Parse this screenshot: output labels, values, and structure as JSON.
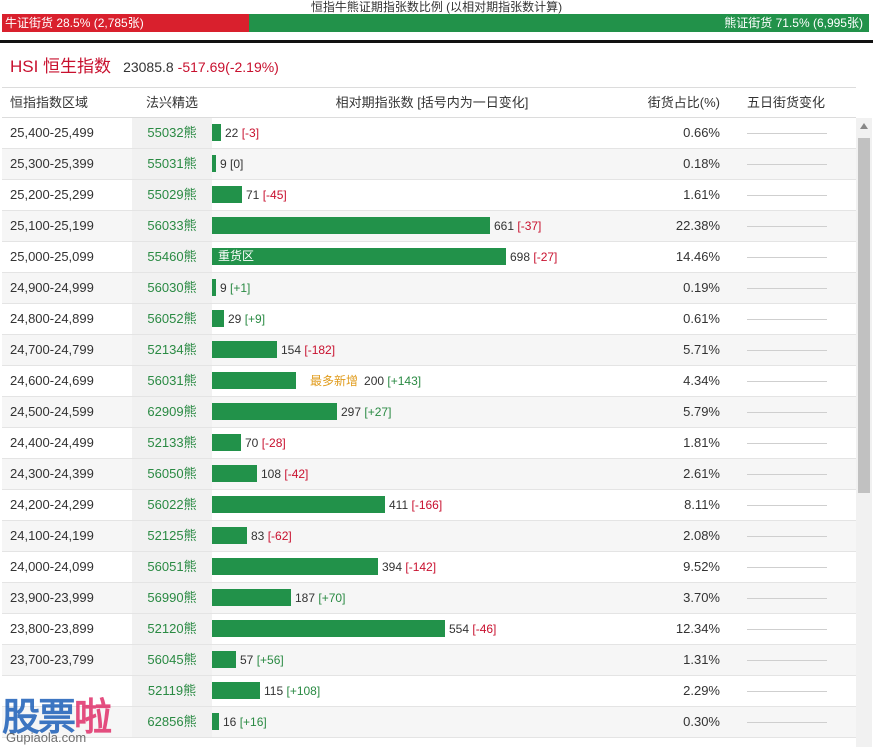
{
  "caption": "恒指牛熊证期指张数比例 (以相对期指张数计算)",
  "ratio": {
    "bull_label": "牛证街货 28.5% (2,785张)",
    "bear_label": "熊证街货 71.5% (6,995张)",
    "bull_fraction": 0.285,
    "bear_fraction": 0.715
  },
  "index": {
    "name": "HSI 恒生指数",
    "price": "23085.8",
    "change": "-517.69(-2.19%)"
  },
  "headers": {
    "range": "恒指指数区域",
    "fx": "法兴精选",
    "contracts": "相对期指张数 [括号内为一日变化]",
    "pct": "街货占比(%)",
    "five": "五日街货变化"
  },
  "rows": [
    {
      "range": "25,400-25,499",
      "code": "55032",
      "suffix": "熊",
      "value": 22,
      "count": "22",
      "change": "[-3]",
      "sign": "neg",
      "pct": "0.66%",
      "inner": "",
      "note": ""
    },
    {
      "range": "25,300-25,399",
      "code": "55031",
      "suffix": "熊",
      "value": 9,
      "count": "9",
      "change": "[0]",
      "sign": "zero",
      "pct": "0.18%",
      "inner": "",
      "note": ""
    },
    {
      "range": "25,200-25,299",
      "code": "55029",
      "suffix": "熊",
      "value": 71,
      "count": "71",
      "change": "[-45]",
      "sign": "neg",
      "pct": "1.61%",
      "inner": "",
      "note": ""
    },
    {
      "range": "25,100-25,199",
      "code": "56033",
      "suffix": "熊",
      "value": 661,
      "count": "661",
      "change": "[-37]",
      "sign": "neg",
      "pct": "22.38%",
      "inner": "",
      "note": ""
    },
    {
      "range": "25,000-25,099",
      "code": "55460",
      "suffix": "熊",
      "value": 698,
      "count": "698",
      "change": "[-27]",
      "sign": "neg",
      "pct": "14.46%",
      "inner": "重货区",
      "note": ""
    },
    {
      "range": "24,900-24,999",
      "code": "56030",
      "suffix": "熊",
      "value": 9,
      "count": "9",
      "change": "[+1]",
      "sign": "pos",
      "pct": "0.19%",
      "inner": "",
      "note": ""
    },
    {
      "range": "24,800-24,899",
      "code": "56052",
      "suffix": "熊",
      "value": 29,
      "count": "29",
      "change": "[+9]",
      "sign": "pos",
      "pct": "0.61%",
      "inner": "",
      "note": ""
    },
    {
      "range": "24,700-24,799",
      "code": "52134",
      "suffix": "熊",
      "value": 154,
      "count": "154",
      "change": "[-182]",
      "sign": "neg",
      "pct": "5.71%",
      "inner": "",
      "note": ""
    },
    {
      "range": "24,600-24,699",
      "code": "56031",
      "suffix": "熊",
      "value": 200,
      "count": "200",
      "change": "[+143]",
      "sign": "pos",
      "pct": "4.34%",
      "inner": "",
      "note": "最多新增"
    },
    {
      "range": "24,500-24,599",
      "code": "62909",
      "suffix": "熊",
      "value": 297,
      "count": "297",
      "change": "[+27]",
      "sign": "pos",
      "pct": "5.79%",
      "inner": "",
      "note": ""
    },
    {
      "range": "24,400-24,499",
      "code": "52133",
      "suffix": "熊",
      "value": 70,
      "count": "70",
      "change": "[-28]",
      "sign": "neg",
      "pct": "1.81%",
      "inner": "",
      "note": ""
    },
    {
      "range": "24,300-24,399",
      "code": "56050",
      "suffix": "熊",
      "value": 108,
      "count": "108",
      "change": "[-42]",
      "sign": "neg",
      "pct": "2.61%",
      "inner": "",
      "note": ""
    },
    {
      "range": "24,200-24,299",
      "code": "56022",
      "suffix": "熊",
      "value": 411,
      "count": "411",
      "change": "[-166]",
      "sign": "neg",
      "pct": "8.11%",
      "inner": "",
      "note": ""
    },
    {
      "range": "24,100-24,199",
      "code": "52125",
      "suffix": "熊",
      "value": 83,
      "count": "83",
      "change": "[-62]",
      "sign": "neg",
      "pct": "2.08%",
      "inner": "",
      "note": ""
    },
    {
      "range": "24,000-24,099",
      "code": "56051",
      "suffix": "熊",
      "value": 394,
      "count": "394",
      "change": "[-142]",
      "sign": "neg",
      "pct": "9.52%",
      "inner": "",
      "note": ""
    },
    {
      "range": "23,900-23,999",
      "code": "56990",
      "suffix": "熊",
      "value": 187,
      "count": "187",
      "change": "[+70]",
      "sign": "pos",
      "pct": "3.70%",
      "inner": "",
      "note": ""
    },
    {
      "range": "23,800-23,899",
      "code": "52120",
      "suffix": "熊",
      "value": 554,
      "count": "554",
      "change": "[-46]",
      "sign": "neg",
      "pct": "12.34%",
      "inner": "",
      "note": ""
    },
    {
      "range": "23,700-23,799",
      "code": "56045",
      "suffix": "熊",
      "value": 57,
      "count": "57",
      "change": "[+56]",
      "sign": "pos",
      "pct": "1.31%",
      "inner": "",
      "note": ""
    },
    {
      "range": "",
      "code": "52119",
      "suffix": "熊",
      "value": 115,
      "count": "115",
      "change": "[+108]",
      "sign": "pos",
      "pct": "2.29%",
      "inner": "",
      "note": ""
    },
    {
      "range": "",
      "code": "62856",
      "suffix": "熊",
      "value": 16,
      "count": "16",
      "change": "[+16]",
      "sign": "pos",
      "pct": "0.30%",
      "inner": "",
      "note": ""
    }
  ],
  "watermark": {
    "main_a": "股票",
    "main_b": "啦",
    "sub": "Gupiaola.com"
  },
  "colors": {
    "bull": "#d9202d",
    "bear": "#22924a",
    "negative": "#c8102e",
    "positive": "#2a8a43",
    "new_note": "#e09b1b"
  }
}
